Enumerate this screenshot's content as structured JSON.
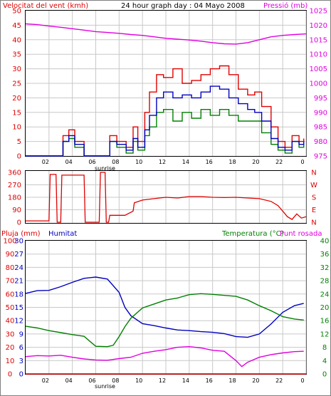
{
  "header": {
    "wind_speed_label": "Velocitat del vent (kmh)",
    "title": "24 hour graph day : 04 Mayo 2008",
    "pressure_label": "Pressió (mb)"
  },
  "footer_labels": {
    "sunrise_1": "sunrise",
    "sunrise_3": "sunrise"
  },
  "colors": {
    "red": "#e00000",
    "green": "#008000",
    "blue": "#0000c0",
    "magenta": "#e000e0",
    "grid": "#c8c8c8"
  },
  "chart_data": [
    {
      "type": "line",
      "id": "wind-pressure",
      "x_ticks": [
        "02",
        "04",
        "06",
        "08",
        "10",
        "12",
        "14",
        "16",
        "18",
        "20",
        "22",
        "0"
      ],
      "y_left_label": "Velocitat del vent (kmh)",
      "y_left_ticks": [
        0,
        5,
        10,
        15,
        20,
        25,
        30,
        35,
        40,
        45,
        50
      ],
      "y_left_range": [
        0,
        50
      ],
      "y_right_label": "Pressió (mb)",
      "y_right_ticks": [
        975,
        980,
        985,
        990,
        995,
        1000,
        1005,
        1010,
        1015,
        1020,
        1025
      ],
      "y_right_range": [
        975,
        1025
      ],
      "series": [
        {
          "name": "Gust",
          "color": "#e00000",
          "axis": "left",
          "x": [
            0,
            1,
            1.8,
            2.6,
            3.2,
            3.7,
            4.2,
            5,
            6.6,
            7.2,
            7.8,
            8.6,
            9.2,
            9.6,
            10.2,
            10.6,
            11.2,
            11.8,
            12.6,
            13.4,
            14.2,
            15,
            15.8,
            16.6,
            17.4,
            18.2,
            19,
            19.6,
            20.2,
            21,
            21.6,
            22.2,
            22.8,
            23.4,
            23.8
          ],
          "y": [
            0,
            0,
            0,
            0,
            7,
            9,
            5,
            0,
            0,
            7,
            5,
            3,
            10,
            5,
            15,
            22,
            28,
            27,
            30,
            25,
            26,
            28,
            30,
            31,
            28,
            23,
            21,
            22,
            17,
            10,
            5,
            3,
            7,
            5,
            6
          ]
        },
        {
          "name": "Speed",
          "color": "#008000",
          "axis": "left",
          "x": [
            0,
            1,
            1.8,
            2.6,
            3.2,
            3.7,
            4.2,
            5,
            6.6,
            7.2,
            7.8,
            8.6,
            9.2,
            9.6,
            10.2,
            10.6,
            11.2,
            11.8,
            12.6,
            13.4,
            14.2,
            15,
            15.8,
            16.6,
            17.4,
            18.2,
            19,
            19.6,
            20.2,
            21,
            21.6,
            22.2,
            22.8,
            23.4,
            23.8
          ],
          "y": [
            0,
            0,
            0,
            0,
            5,
            6,
            3,
            0,
            0,
            5,
            3,
            1,
            5,
            2,
            7,
            10,
            15,
            16,
            12,
            15,
            13,
            16,
            14,
            16,
            14,
            12,
            12,
            12,
            8,
            4,
            2,
            1,
            5,
            3,
            4
          ]
        },
        {
          "name": "Average",
          "color": "#0000c0",
          "axis": "left",
          "x": [
            0,
            1,
            1.8,
            2.6,
            3.2,
            3.7,
            4.2,
            5,
            6.6,
            7.2,
            7.8,
            8.6,
            9.2,
            9.6,
            10.2,
            10.6,
            11.2,
            11.8,
            12.6,
            13.4,
            14.2,
            15,
            15.8,
            16.6,
            17.4,
            18.2,
            19,
            19.6,
            20.2,
            21,
            21.6,
            22.2,
            22.8,
            23.4,
            23.8
          ],
          "y": [
            0,
            0,
            0,
            0,
            5,
            7,
            4,
            0,
            0,
            5,
            4,
            2,
            6,
            3,
            9,
            14,
            20,
            22,
            20,
            21,
            20,
            22,
            24,
            23,
            20,
            18,
            16,
            15,
            12,
            6,
            3,
            2,
            5,
            4,
            5
          ]
        },
        {
          "name": "Pressió",
          "color": "#e000e0",
          "axis": "right",
          "x": [
            0,
            1,
            2,
            3,
            4,
            5,
            6,
            7,
            8,
            9,
            10,
            11,
            12,
            13,
            14,
            15,
            16,
            17,
            18,
            19,
            20,
            21,
            22,
            23,
            24
          ],
          "y": [
            1020.5,
            1020.2,
            1019.7,
            1019.3,
            1018.8,
            1018.3,
            1017.8,
            1017.5,
            1017.2,
            1016.8,
            1016.5,
            1016,
            1015.5,
            1015.2,
            1014.9,
            1014.5,
            1014,
            1013.6,
            1013.5,
            1014,
            1015,
            1016,
            1016.5,
            1016.8,
            1017
          ]
        }
      ]
    },
    {
      "type": "line",
      "id": "wind-direction",
      "y_left_ticks": [
        0,
        90,
        180,
        270,
        360
      ],
      "y_left_range": [
        0,
        360
      ],
      "y_right_ticks": [
        "N",
        "W",
        "S",
        "E",
        "N"
      ],
      "series": [
        {
          "name": "Direction",
          "color": "#e00000",
          "x": [
            0,
            1,
            2,
            2.1,
            2.6,
            2.7,
            3,
            3.1,
            5,
            5.1,
            6.3,
            6.4,
            6.8,
            6.9,
            7.1,
            7.2,
            8.5,
            9.2,
            9.3,
            10,
            11,
            12,
            13,
            14,
            15,
            16,
            17,
            18,
            19,
            20,
            21,
            21.6,
            22,
            22.4,
            22.8,
            23.2,
            23.6,
            24
          ],
          "y": [
            10,
            10,
            10,
            345,
            345,
            0,
            0,
            340,
            340,
            0,
            0,
            370,
            370,
            0,
            0,
            50,
            50,
            80,
            140,
            160,
            170,
            180,
            175,
            185,
            185,
            180,
            178,
            180,
            175,
            170,
            150,
            120,
            80,
            40,
            20,
            60,
            30,
            40
          ]
        }
      ]
    },
    {
      "type": "line",
      "id": "humidity-temperature",
      "y_left1_label": "Pluja (mm)",
      "y_left1_ticks": [
        0,
        10,
        20,
        30,
        40,
        50,
        60,
        70,
        80,
        90,
        100
      ],
      "y_left2_label": "Humitat",
      "y_left2_ticks": [
        0,
        3,
        6,
        9,
        12,
        15,
        18,
        21,
        24,
        27,
        30
      ],
      "y_right_label": "Temperatura (°C)",
      "y_right_label2": "Punt rosada",
      "y_right_ticks": [
        0,
        4,
        8,
        12,
        16,
        20,
        24,
        28,
        32,
        36,
        40
      ],
      "y_range": [
        0,
        40
      ],
      "series": [
        {
          "name": "Humitat",
          "color": "#0000c0",
          "x": [
            0,
            1,
            2,
            3,
            4,
            5,
            6,
            7,
            8,
            8.5,
            9,
            10,
            11,
            12,
            13,
            14,
            15,
            16,
            17,
            18,
            19,
            20,
            21,
            22,
            23,
            23.8
          ],
          "y": [
            24.2,
            25,
            25.1,
            26.2,
            27.5,
            28.7,
            29.1,
            28.5,
            24.5,
            20,
            17.5,
            15.1,
            14.5,
            13.8,
            13.2,
            13,
            12.7,
            12.5,
            12.1,
            11.2,
            11,
            12,
            15,
            18.5,
            20.5,
            21.2
          ]
        },
        {
          "name": "Temperatura (°C)",
          "color": "#008000",
          "x": [
            0,
            1,
            2,
            3,
            4,
            5,
            6,
            7,
            7.5,
            8,
            8.5,
            9,
            10,
            11,
            12,
            13,
            14,
            15,
            16,
            17,
            18,
            19,
            20,
            21,
            22,
            23,
            23.8
          ],
          "y": [
            14.3,
            13.8,
            13,
            12.4,
            11.8,
            11.3,
            8.3,
            8.2,
            8.6,
            11.2,
            14.2,
            16.7,
            19.8,
            21,
            22.2,
            22.8,
            23.8,
            24.1,
            23.9,
            23.6,
            23.3,
            22.2,
            20.5,
            19,
            17.2,
            16.5,
            16.2
          ]
        },
        {
          "name": "Punt rosada",
          "color": "#e000e0",
          "x": [
            0,
            1,
            2,
            3,
            4,
            5,
            6,
            7,
            8,
            9,
            10,
            11,
            12,
            13,
            14,
            15,
            16,
            17,
            18,
            18.5,
            19,
            20,
            21,
            22,
            23,
            23.8
          ],
          "y": [
            5.2,
            5.5,
            5.4,
            5.6,
            5,
            4.5,
            4.2,
            4.1,
            4.6,
            5,
            6.2,
            6.8,
            7.3,
            8,
            8.2,
            7.8,
            7.1,
            6.8,
            4,
            2.2,
            3.5,
            5,
            5.8,
            6.3,
            6.7,
            6.8
          ]
        },
        {
          "name": "Pluja (mm)",
          "color": "#e00000",
          "x": [
            0,
            24
          ],
          "y": [
            0,
            0
          ]
        }
      ]
    }
  ]
}
